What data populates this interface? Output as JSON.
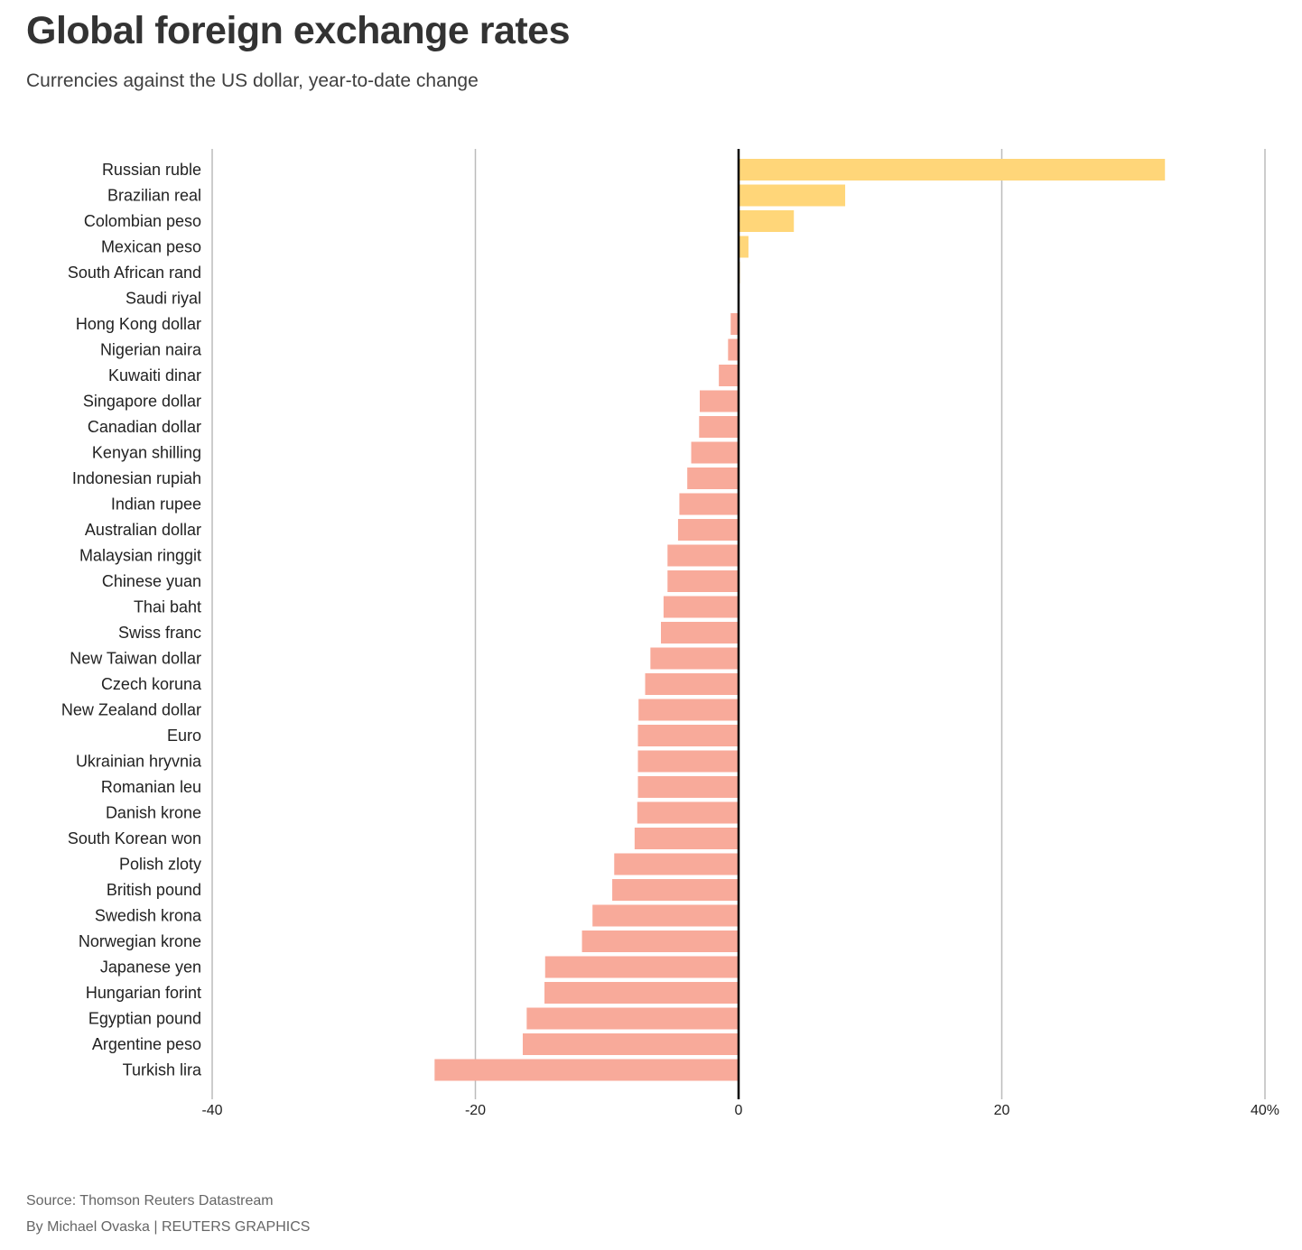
{
  "header": {
    "title": "Global foreign exchange rates",
    "subtitle": "Currencies against the US dollar, year-to-date change"
  },
  "footer": {
    "source": "Source: Thomson Reuters Datastream",
    "byline": "By Michael Ovaska | REUTERS GRAPHICS"
  },
  "colors": {
    "positive": "#ffd679",
    "negative": "#f8aa9a",
    "zero_line": "#000000",
    "grid": "#bbbbbb",
    "text": "#222222"
  },
  "chart_data": {
    "type": "bar",
    "orientation": "horizontal",
    "title": "Global foreign exchange rates",
    "subtitle": "Currencies against the US dollar, year-to-date change",
    "xlabel": "",
    "ylabel": "",
    "unit": "%",
    "xlim": [
      -40,
      40
    ],
    "x_ticks": [
      -40,
      -20,
      0,
      20,
      40
    ],
    "x_tick_labels": [
      "-40",
      "-20",
      "0",
      "20",
      "40%"
    ],
    "grid": true,
    "legend": "none",
    "categories": [
      "Russian ruble",
      "Brazilian real",
      "Colombian peso",
      "Mexican peso",
      "South African rand",
      "Saudi riyal",
      "Hong Kong dollar",
      "Nigerian naira",
      "Kuwaiti dinar",
      "Singapore dollar",
      "Canadian dollar",
      "Kenyan shilling",
      "Indonesian rupiah",
      "Indian rupee",
      "Australian dollar",
      "Malaysian ringgit",
      "Chinese yuan",
      "Thai baht",
      "Swiss franc",
      "New Taiwan dollar",
      "Czech koruna",
      "New Zealand dollar",
      "Euro",
      "Ukrainian hryvnia",
      "Romanian leu",
      "Danish krone",
      "South Korean won",
      "Polish zloty",
      "British pound",
      "Swedish krona",
      "Norwegian krone",
      "Japanese yen",
      "Hungarian forint",
      "Egyptian pound",
      "Argentine peso",
      "Turkish lira"
    ],
    "values": [
      32.4,
      8.1,
      4.2,
      0.75,
      0.1,
      0.0,
      -0.6,
      -0.8,
      -1.5,
      -2.95,
      -3.0,
      -3.6,
      -3.9,
      -4.5,
      -4.6,
      -5.4,
      -5.4,
      -5.7,
      -5.9,
      -6.7,
      -7.1,
      -7.6,
      -7.65,
      -7.65,
      -7.65,
      -7.7,
      -7.9,
      -9.45,
      -9.6,
      -11.1,
      -11.9,
      -14.7,
      -14.75,
      -16.1,
      -16.4,
      -23.1
    ]
  }
}
